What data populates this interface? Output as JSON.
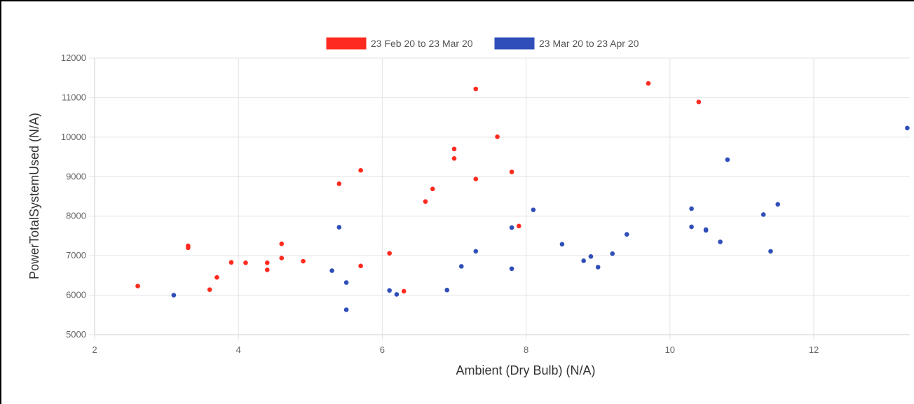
{
  "colors": {
    "series1": "#ff2a1f",
    "series2": "#2f4eb8"
  },
  "chart_data": {
    "type": "scatter",
    "xlabel": "Ambient (Dry Bulb) (N/A)",
    "ylabel": "PowerTotalSystemUsed (N/A)",
    "xlim": [
      2,
      13.3
    ],
    "ylim": [
      5000,
      12000
    ],
    "x_ticks": [
      "2",
      "4",
      "6",
      "8",
      "10",
      "12"
    ],
    "y_ticks": [
      "5000",
      "6000",
      "7000",
      "8000",
      "9000",
      "10000",
      "11000",
      "12000"
    ],
    "grid": true,
    "legend_position": "top-center",
    "series": [
      {
        "name": "23 Feb 20 to 23 Mar 20",
        "color": "#ff2a1f",
        "points": [
          [
            2.6,
            6230
          ],
          [
            3.3,
            7250
          ],
          [
            3.3,
            7200
          ],
          [
            3.6,
            6140
          ],
          [
            3.7,
            6450
          ],
          [
            3.9,
            6830
          ],
          [
            4.1,
            6820
          ],
          [
            4.4,
            6820
          ],
          [
            4.4,
            6640
          ],
          [
            4.6,
            7300
          ],
          [
            4.6,
            6940
          ],
          [
            4.9,
            6860
          ],
          [
            5.4,
            8820
          ],
          [
            5.7,
            9160
          ],
          [
            5.7,
            6740
          ],
          [
            6.1,
            7060
          ],
          [
            6.3,
            6100
          ],
          [
            6.6,
            8370
          ],
          [
            6.7,
            8690
          ],
          [
            7.0,
            9700
          ],
          [
            7.0,
            9460
          ],
          [
            7.3,
            11220
          ],
          [
            7.3,
            8940
          ],
          [
            7.6,
            10010
          ],
          [
            7.8,
            9120
          ],
          [
            7.9,
            7750
          ],
          [
            9.7,
            11360
          ],
          [
            10.4,
            10890
          ]
        ]
      },
      {
        "name": "23 Mar 20 to 23 Apr 20",
        "color": "#2f4eb8",
        "points": [
          [
            3.1,
            6000
          ],
          [
            5.3,
            6620
          ],
          [
            5.4,
            7720
          ],
          [
            5.5,
            6320
          ],
          [
            5.5,
            5630
          ],
          [
            6.1,
            6120
          ],
          [
            6.2,
            6020
          ],
          [
            6.9,
            6130
          ],
          [
            7.1,
            6730
          ],
          [
            7.3,
            7110
          ],
          [
            7.8,
            7710
          ],
          [
            7.8,
            6670
          ],
          [
            8.1,
            8160
          ],
          [
            8.5,
            7290
          ],
          [
            8.8,
            6870
          ],
          [
            8.9,
            6980
          ],
          [
            9.0,
            6710
          ],
          [
            9.2,
            7050
          ],
          [
            9.4,
            7540
          ],
          [
            10.3,
            8190
          ],
          [
            10.3,
            7730
          ],
          [
            10.5,
            7660
          ],
          [
            10.5,
            7640
          ],
          [
            10.7,
            7350
          ],
          [
            10.8,
            9430
          ],
          [
            11.3,
            8040
          ],
          [
            11.4,
            7110
          ],
          [
            11.5,
            8300
          ],
          [
            13.3,
            10230
          ]
        ]
      }
    ]
  }
}
